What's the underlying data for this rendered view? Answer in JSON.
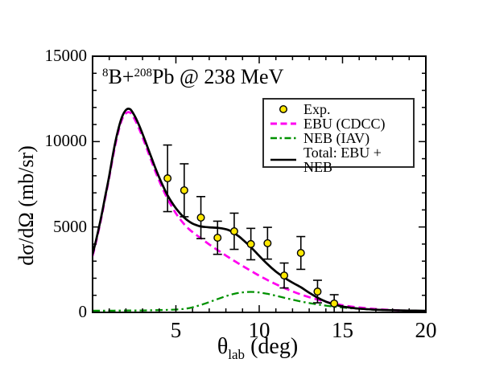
{
  "figure": {
    "title_parts": {
      "sup1": "8",
      "mid": "B+",
      "sup2": "208",
      "rest": "Pb @ 238 MeV"
    },
    "x_axis_label_parts": {
      "theta": "θ",
      "sub": "lab",
      "rest": " (deg)"
    },
    "y_axis_label": "dσ/dΩ (mb/sr)"
  },
  "colors": {
    "background": "#ffffff",
    "frame": "#000000",
    "exp_marker_fill": "#ffe800",
    "marker_stroke": "#000000",
    "ebu_line": "#ff00f0",
    "neb_line": "#009100",
    "total_line": "#000000",
    "legend_border": "#2b2b2b"
  },
  "chart_data": {
    "type": "line",
    "title": "8B + 208Pb @ 238 MeV",
    "xlabel": "theta_lab (deg)",
    "ylabel": "dsigma/dOmega (mb/sr)",
    "xlim": [
      0,
      20
    ],
    "ylim": [
      0,
      15000
    ],
    "grid": false,
    "legend_position": "upper right",
    "x_ticks": {
      "major": [
        5,
        10,
        15,
        20
      ],
      "labels": [
        "5",
        "10",
        "15",
        "20"
      ],
      "minor": [
        1,
        2,
        3,
        4,
        6,
        7,
        8,
        9,
        11,
        12,
        13,
        14,
        16,
        17,
        18,
        19
      ]
    },
    "y_ticks": {
      "major": [
        0,
        5000,
        10000,
        15000
      ],
      "labels": [
        "0",
        "5000",
        "10000",
        "15000"
      ],
      "minor": [
        1000,
        2000,
        3000,
        4000,
        6000,
        7000,
        8000,
        9000,
        11000,
        12000,
        13000,
        14000
      ]
    },
    "series": [
      {
        "key": "exp",
        "name": "Exp.",
        "style": "scatter-errorbar",
        "color_key": "exp_marker_fill",
        "points": [
          [
            4.5,
            7850,
            1950
          ],
          [
            5.5,
            7150,
            1550
          ],
          [
            6.5,
            5550,
            1230
          ],
          [
            7.5,
            4370,
            970
          ],
          [
            8.5,
            4750,
            1060
          ],
          [
            9.5,
            4000,
            920
          ],
          [
            10.5,
            4050,
            930
          ],
          [
            11.5,
            2160,
            730
          ],
          [
            12.5,
            3480,
            960
          ],
          [
            13.5,
            1220,
            660
          ],
          [
            14.5,
            520,
            515
          ]
        ]
      },
      {
        "key": "ebu",
        "name": "EBU (CDCC)",
        "style": "dashed",
        "color_key": "ebu_line",
        "points": [
          [
            0,
            3300
          ],
          [
            0.25,
            4300
          ],
          [
            0.5,
            5400
          ],
          [
            0.75,
            6650
          ],
          [
            1,
            7900
          ],
          [
            1.25,
            9250
          ],
          [
            1.5,
            10400
          ],
          [
            1.75,
            11250
          ],
          [
            2,
            11650
          ],
          [
            2.25,
            11700
          ],
          [
            2.5,
            11350
          ],
          [
            2.75,
            10850
          ],
          [
            3,
            10250
          ],
          [
            3.25,
            9600
          ],
          [
            3.5,
            8950
          ],
          [
            3.75,
            8300
          ],
          [
            4,
            7700
          ],
          [
            4.25,
            7150
          ],
          [
            4.5,
            6650
          ],
          [
            4.75,
            6200
          ],
          [
            5,
            5800
          ],
          [
            5.25,
            5460
          ],
          [
            5.5,
            5160
          ],
          [
            5.75,
            4910
          ],
          [
            6,
            4700
          ],
          [
            6.5,
            4340
          ],
          [
            7,
            3980
          ],
          [
            7.5,
            3650
          ],
          [
            8,
            3330
          ],
          [
            8.5,
            3020
          ],
          [
            9,
            2720
          ],
          [
            9.5,
            2430
          ],
          [
            10,
            2150
          ],
          [
            10.5,
            1890
          ],
          [
            11,
            1650
          ],
          [
            11.5,
            1430
          ],
          [
            12,
            1230
          ],
          [
            12.5,
            1050
          ],
          [
            13,
            890
          ],
          [
            13.5,
            750
          ],
          [
            14,
            620
          ],
          [
            14.5,
            510
          ],
          [
            15,
            420
          ],
          [
            15.5,
            345
          ],
          [
            16,
            285
          ],
          [
            17,
            195
          ],
          [
            18,
            135
          ],
          [
            19,
            95
          ],
          [
            20,
            65
          ]
        ]
      },
      {
        "key": "neb",
        "name": "NEB (IAV)",
        "style": "dashdot",
        "color_key": "neb_line",
        "points": [
          [
            0,
            100
          ],
          [
            0.5,
            100
          ],
          [
            1,
            100
          ],
          [
            1.5,
            105
          ],
          [
            2,
            110
          ],
          [
            2.5,
            110
          ],
          [
            3,
            115
          ],
          [
            3.5,
            120
          ],
          [
            4,
            130
          ],
          [
            4.5,
            145
          ],
          [
            5,
            165
          ],
          [
            5.5,
            205
          ],
          [
            6,
            295
          ],
          [
            6.5,
            435
          ],
          [
            7,
            600
          ],
          [
            7.5,
            780
          ],
          [
            8,
            950
          ],
          [
            8.5,
            1085
          ],
          [
            9,
            1170
          ],
          [
            9.5,
            1200
          ],
          [
            10,
            1165
          ],
          [
            10.5,
            1085
          ],
          [
            11,
            975
          ],
          [
            11.5,
            860
          ],
          [
            12,
            745
          ],
          [
            12.5,
            640
          ],
          [
            13,
            545
          ],
          [
            13.5,
            465
          ],
          [
            14,
            395
          ],
          [
            14.5,
            335
          ],
          [
            15,
            285
          ],
          [
            15.5,
            245
          ],
          [
            16,
            210
          ],
          [
            16.5,
            180
          ],
          [
            17,
            155
          ],
          [
            18,
            120
          ],
          [
            19,
            95
          ],
          [
            20,
            75
          ]
        ]
      },
      {
        "key": "total",
        "name": "Total: EBU + NEB",
        "style": "solid",
        "color_key": "total_line",
        "points": [
          [
            0,
            3400
          ],
          [
            0.25,
            4400
          ],
          [
            0.5,
            5500
          ],
          [
            0.75,
            6750
          ],
          [
            1,
            8000
          ],
          [
            1.25,
            9400
          ],
          [
            1.5,
            10550
          ],
          [
            1.75,
            11400
          ],
          [
            2,
            11850
          ],
          [
            2.25,
            11900
          ],
          [
            2.5,
            11550
          ],
          [
            2.75,
            11050
          ],
          [
            3,
            10450
          ],
          [
            3.25,
            9800
          ],
          [
            3.5,
            9150
          ],
          [
            3.75,
            8500
          ],
          [
            4,
            7900
          ],
          [
            4.25,
            7350
          ],
          [
            4.5,
            6850
          ],
          [
            4.75,
            6450
          ],
          [
            5,
            6100
          ],
          [
            5.25,
            5800
          ],
          [
            5.5,
            5550
          ],
          [
            5.75,
            5350
          ],
          [
            6,
            5200
          ],
          [
            6.25,
            5100
          ],
          [
            6.5,
            5030
          ],
          [
            7,
            4980
          ],
          [
            7.5,
            4950
          ],
          [
            8,
            4870
          ],
          [
            8.25,
            4780
          ],
          [
            8.5,
            4640
          ],
          [
            8.75,
            4470
          ],
          [
            9,
            4270
          ],
          [
            9.25,
            4050
          ],
          [
            9.5,
            3820
          ],
          [
            9.75,
            3570
          ],
          [
            10,
            3310
          ],
          [
            10.5,
            2820
          ],
          [
            11,
            2390
          ],
          [
            11.5,
            2040
          ],
          [
            12,
            1740
          ],
          [
            12.5,
            1470
          ],
          [
            13,
            1150
          ],
          [
            13.5,
            860
          ],
          [
            14,
            630
          ],
          [
            14.5,
            460
          ],
          [
            15,
            345
          ],
          [
            15.5,
            275
          ],
          [
            16,
            220
          ],
          [
            17,
            155
          ],
          [
            18,
            125
          ],
          [
            19,
            105
          ],
          [
            20,
            90
          ]
        ]
      }
    ]
  },
  "legend": {
    "items": [
      {
        "label": "Exp."
      },
      {
        "label": "EBU (CDCC)"
      },
      {
        "label": "NEB (IAV)"
      },
      {
        "label": "Total: EBU + NEB"
      }
    ]
  }
}
